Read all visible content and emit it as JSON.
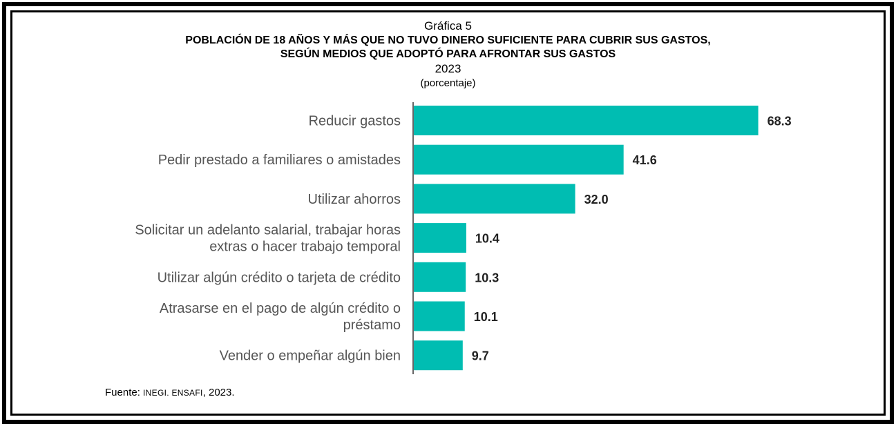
{
  "header": {
    "label": "Gráfica 5",
    "title_line1": "POBLACIÓN DE 18 AÑOS Y MÁS QUE NO TUVO DINERO SUFICIENTE PARA CUBRIR SUS GASTOS,",
    "title_line2": "SEGÚN MEDIOS QUE ADOPTÓ PARA AFRONTAR SUS GASTOS",
    "year": "2023",
    "unit": "(porcentaje)"
  },
  "chart_data": {
    "type": "bar",
    "orientation": "horizontal",
    "title": "POBLACIÓN DE 18 AÑOS Y MÁS QUE NO TUVO DINERO SUFICIENTE PARA CUBRIR SUS GASTOS, SEGÚN MEDIOS QUE ADOPTÓ PARA AFRONTAR SUS GASTOS",
    "categories": [
      [
        "Reducir gastos"
      ],
      [
        "Pedir prestado a familiares o amistades"
      ],
      [
        "Utilizar ahorros"
      ],
      [
        "Solicitar un adelanto salarial, trabajar horas",
        "extras o hacer trabajo temporal"
      ],
      [
        "Utilizar algún crédito o tarjeta de crédito"
      ],
      [
        "Atrasarse en el pago de algún crédito o",
        "préstamo"
      ],
      [
        "Vender o empeñar algún bien"
      ]
    ],
    "values": [
      68.3,
      41.6,
      32.0,
      10.4,
      10.3,
      10.1,
      9.7
    ],
    "value_labels": [
      "68.3",
      "41.6",
      "32.0",
      "10.4",
      "10.3",
      "10.1",
      "9.7"
    ],
    "xlim": [
      0,
      70
    ],
    "grid": false,
    "bar_color": "#00BDB2"
  },
  "source": {
    "prefix": "Fuente: ",
    "org": "INEGI. ENSAFI",
    "suffix": ", 2023."
  }
}
